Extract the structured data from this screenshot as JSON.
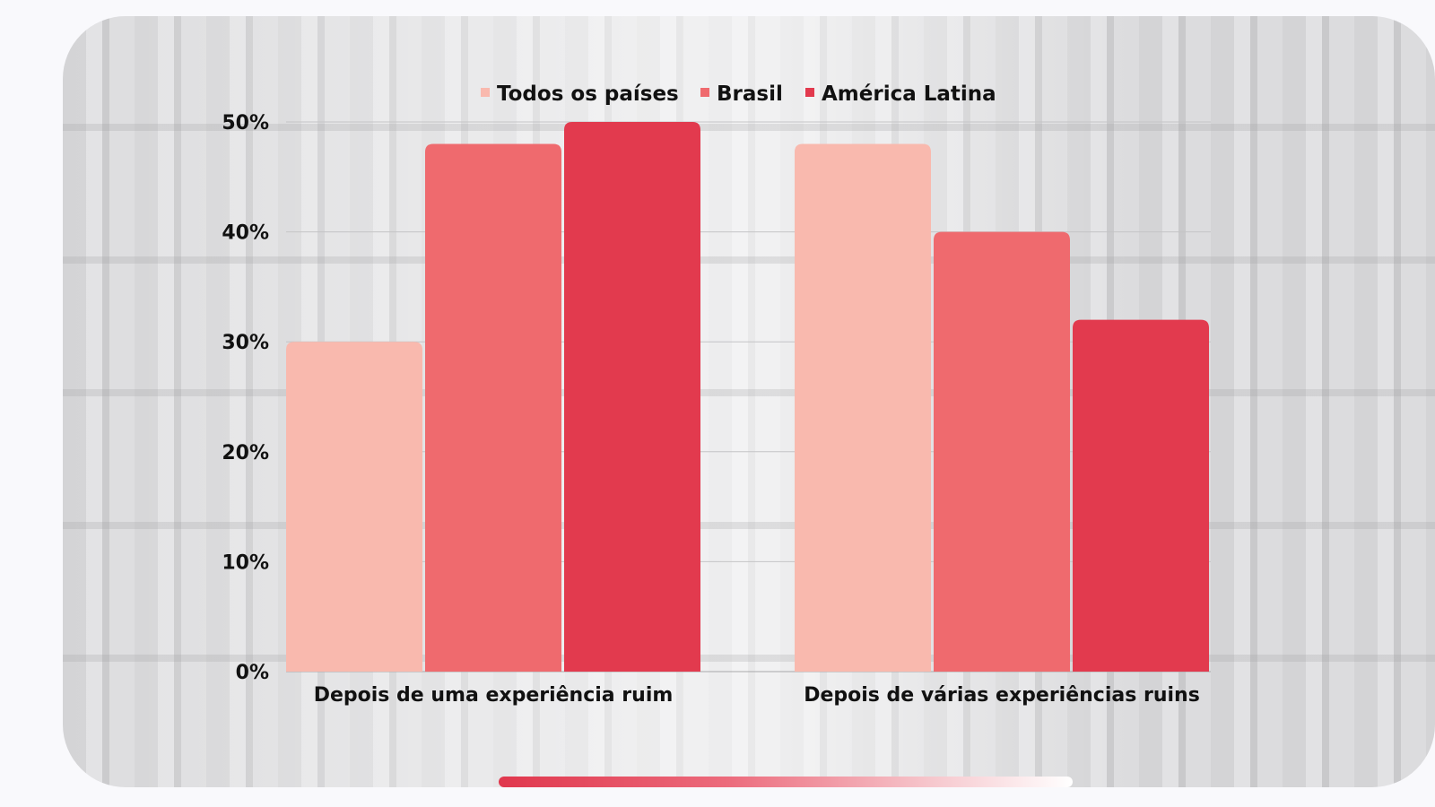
{
  "chart_data": {
    "type": "bar",
    "categories": [
      "Depois de uma experiência ruim",
      "Depois de várias experiências ruins"
    ],
    "series": [
      {
        "name": "Todos os países",
        "values": [
          30,
          48
        ],
        "color": "#f9b9ae"
      },
      {
        "name": "Brasil",
        "values": [
          48,
          40
        ],
        "color": "#ef6a6e"
      },
      {
        "name": "América Latina",
        "values": [
          50,
          32
        ],
        "color": "#e23a4e"
      }
    ],
    "y_ticks": [
      "0%",
      "10%",
      "20%",
      "30%",
      "40%",
      "50%"
    ],
    "ylim": [
      0,
      50
    ],
    "grid": true,
    "legend_position": "top"
  }
}
